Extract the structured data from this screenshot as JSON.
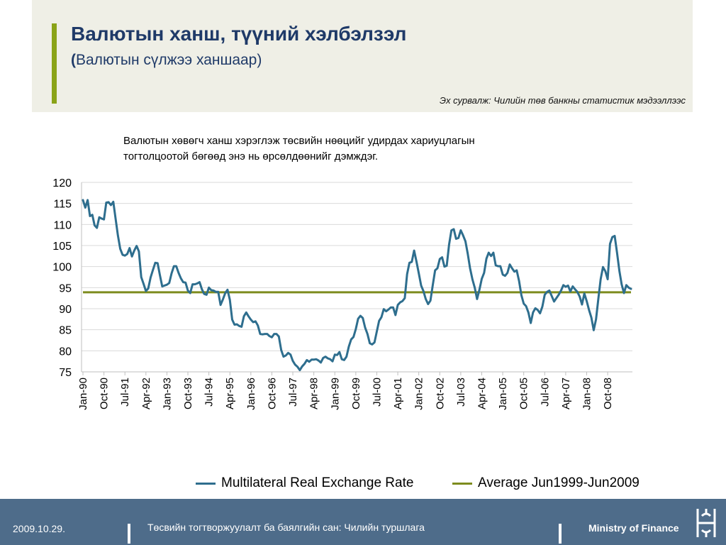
{
  "header": {
    "title": "Валютын ханш, түүний хэлбэлзэл",
    "subtitle_paren_open": "(",
    "subtitle_text": "Валютын сүлжээ ханшаар)",
    "source": "Эх сурвалж: Чилийн төв банкны статистик мэдээллээс"
  },
  "note": {
    "line1": "Валютын хөвөгч ханш хэрэглэж төсвийн нөөцийг удирдах хариуцлагын",
    "line2": "тогтолцоотой бөгөөд энэ нь өрсөлдөөнийг дэмждэг."
  },
  "chart_data": {
    "type": "line",
    "title": "",
    "xlabel": "",
    "ylabel": "",
    "ylim": [
      75,
      120
    ],
    "yticks": [
      75,
      80,
      85,
      90,
      95,
      100,
      105,
      110,
      115,
      120
    ],
    "grid": true,
    "legend_position": "bottom",
    "x_start": "Jan-90",
    "x_frequency": "monthly",
    "x_tick_labels": [
      "Jan-90",
      "Oct-90",
      "Jul-91",
      "Apr-92",
      "Jan-93",
      "Oct-93",
      "Jul-94",
      "Apr-95",
      "Jan-96",
      "Oct-96",
      "Jul-97",
      "Apr-98",
      "Jan-99",
      "Oct-99",
      "Jul-00",
      "Apr-01",
      "Jan-02",
      "Oct-02",
      "Jul-03",
      "Apr-04",
      "Jan-05",
      "Oct-05",
      "Jul-06",
      "Apr-07",
      "Jan-08",
      "Oct-08"
    ],
    "series": [
      {
        "name": "Multilateral Real Exchange Rate",
        "color": "#2e6e8e",
        "values": [
          115.8,
          114.0,
          115.8,
          112.0,
          112.3,
          109.8,
          109.2,
          111.7,
          111.4,
          111.2,
          115.2,
          115.3,
          114.6,
          115.4,
          111.3,
          107.4,
          104.2,
          102.8,
          102.6,
          103.0,
          104.4,
          102.4,
          103.8,
          104.9,
          103.6,
          97.5,
          95.9,
          94.2,
          94.8,
          97.4,
          99.2,
          100.9,
          100.8,
          98.0,
          95.3,
          95.5,
          95.7,
          96.1,
          98.4,
          100.1,
          100.1,
          98.5,
          97.2,
          96.3,
          96.2,
          94.3,
          93.7,
          95.8,
          95.8,
          96.0,
          96.3,
          94.6,
          93.5,
          93.3,
          95.0,
          94.4,
          94.3,
          94.0,
          94.0,
          90.9,
          92.2,
          93.7,
          94.5,
          92.1,
          87.4,
          86.2,
          86.3,
          85.9,
          85.7,
          88.2,
          89.1,
          88.2,
          87.4,
          86.8,
          87.0,
          86.0,
          84.0,
          83.9,
          84.0,
          84.0,
          83.5,
          83.2,
          84.0,
          84.0,
          83.4,
          80.2,
          78.6,
          78.9,
          79.5,
          79.1,
          77.6,
          76.7,
          76.2,
          75.4,
          76.3,
          76.9,
          77.8,
          77.4,
          77.9,
          77.9,
          78.0,
          77.7,
          77.2,
          78.3,
          78.6,
          78.2,
          78.0,
          77.5,
          79.1,
          79.0,
          79.7,
          78.0,
          77.8,
          78.6,
          81.0,
          82.7,
          83.3,
          85.2,
          87.6,
          88.3,
          87.8,
          85.5,
          84.0,
          81.8,
          81.5,
          82.0,
          84.6,
          87.1,
          88.0,
          89.9,
          89.4,
          89.8,
          90.3,
          90.3,
          88.5,
          90.9,
          91.5,
          91.8,
          92.5,
          98.2,
          100.9,
          101.1,
          103.8,
          101.2,
          98.4,
          95.5,
          94.2,
          92.3,
          91.1,
          91.9,
          95.6,
          99.1,
          99.6,
          101.8,
          102.2,
          100.0,
          100.2,
          105.2,
          108.6,
          108.9,
          106.6,
          106.8,
          108.6,
          107.4,
          106.0,
          103.1,
          99.6,
          97.0,
          95.0,
          92.3,
          94.5,
          97.1,
          98.5,
          101.9,
          103.3,
          102.5,
          103.3,
          100.3,
          100.1,
          100.1,
          98.1,
          97.8,
          98.5,
          100.5,
          99.6,
          98.8,
          99.1,
          96.6,
          93.2,
          91.2,
          90.6,
          89.1,
          86.6,
          89.1,
          90.1,
          89.7,
          88.9,
          90.5,
          93.3,
          94.0,
          94.3,
          93.0,
          91.7,
          92.5,
          93.3,
          94.3,
          95.6,
          95.2,
          95.5,
          94.1,
          95.3,
          94.6,
          94.0,
          92.9,
          91.0,
          93.6,
          91.8,
          89.7,
          87.9,
          84.9,
          87.5,
          92.3,
          97.0,
          99.9,
          98.9,
          97.0,
          105.4,
          107.0,
          107.3,
          103.3,
          99.0,
          95.8,
          93.7,
          95.6,
          95.0,
          94.7
        ]
      },
      {
        "name": "Average Jun1999-Jun2009",
        "color": "#7d8c1e",
        "constant": 93.9
      }
    ]
  },
  "footer": {
    "date": "2009.10.29.",
    "center": "Төсвийн тогтворжуулалт ба баялгийн сан: Чилийн туршлага",
    "ministry": "Ministry of Finance"
  }
}
